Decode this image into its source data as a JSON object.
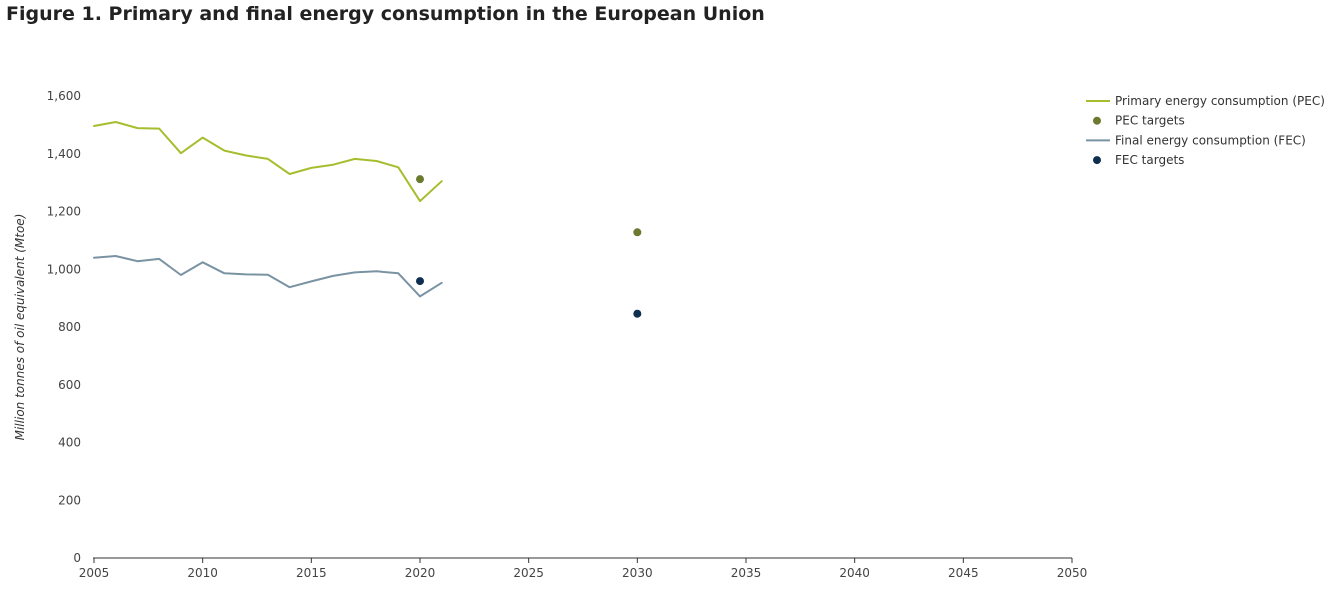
{
  "title": "Figure 1. Primary and final energy consumption in the European Union",
  "chart_data": {
    "type": "line",
    "title": "Figure 1. Primary and final energy consumption in the European Union",
    "xlabel": "",
    "ylabel": "Million tonnes of oil equivalent (Mtoe)",
    "xlim": [
      2005,
      2050
    ],
    "ylim": [
      0,
      1600
    ],
    "x_ticks": [
      2005,
      2010,
      2015,
      2020,
      2025,
      2030,
      2035,
      2040,
      2045,
      2050
    ],
    "y_ticks": [
      0,
      200,
      400,
      600,
      800,
      1000,
      1200,
      1400,
      1600
    ],
    "grid": false,
    "legend_position": "top-right",
    "series": [
      {
        "name": "Primary energy consumption (PEC)",
        "kind": "line",
        "color": "#a8bd2e",
        "x": [
          2005,
          2006,
          2007,
          2008,
          2009,
          2010,
          2011,
          2012,
          2013,
          2014,
          2015,
          2016,
          2017,
          2018,
          2019,
          2020,
          2021
        ],
        "y": [
          1496,
          1510,
          1489,
          1487,
          1402,
          1456,
          1411,
          1394,
          1382,
          1330,
          1351,
          1362,
          1382,
          1375,
          1353,
          1236,
          1305
        ]
      },
      {
        "name": "PEC targets",
        "kind": "scatter",
        "color": "#6b7a2f",
        "x": [
          2020,
          2030
        ],
        "y": [
          1312,
          1128
        ]
      },
      {
        "name": "Final energy consumption (FEC)",
        "kind": "line",
        "color": "#7a93a3",
        "x": [
          2005,
          2006,
          2007,
          2008,
          2009,
          2010,
          2011,
          2012,
          2013,
          2014,
          2015,
          2016,
          2017,
          2018,
          2019,
          2020,
          2021
        ],
        "y": [
          1040,
          1046,
          1028,
          1036,
          980,
          1024,
          986,
          982,
          981,
          938,
          958,
          977,
          989,
          993,
          986,
          906,
          953
        ]
      },
      {
        "name": "FEC targets",
        "kind": "scatter",
        "color": "#0e2f4f",
        "x": [
          2020,
          2030
        ],
        "y": [
          959,
          846
        ]
      }
    ]
  }
}
